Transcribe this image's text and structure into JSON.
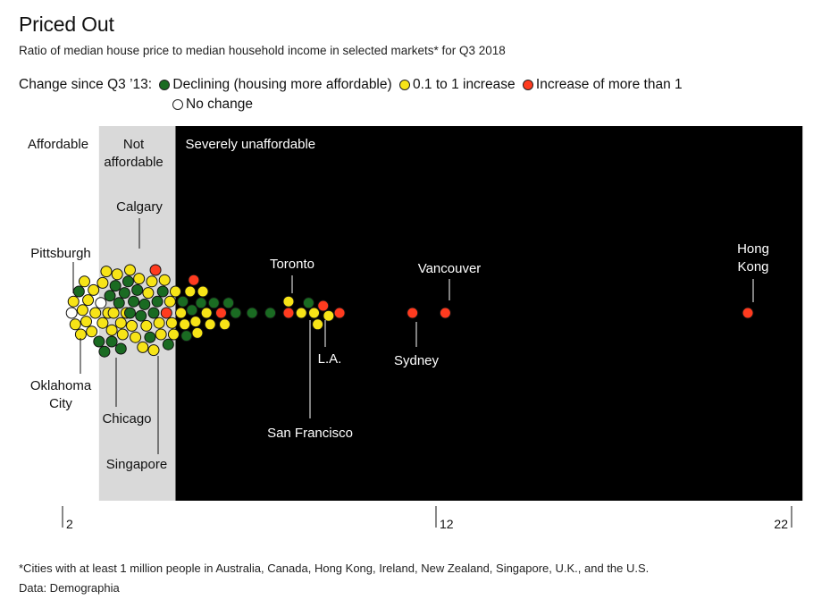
{
  "header": {
    "title": "Priced Out",
    "subtitle": "Ratio of median house price to median household income in selected markets* for Q3 2018"
  },
  "legend": {
    "heading": "Change since Q3 ’13:",
    "items": [
      {
        "label": "Declining (housing more affordable)",
        "color": "#1a6b22"
      },
      {
        "label": "0.1 to 1 increase",
        "color": "#f7e417"
      },
      {
        "label": "Increase of more than 1",
        "color": "#ff3b1f"
      },
      {
        "label": "No change",
        "color": "#ffffff"
      }
    ]
  },
  "footer": {
    "footnote": "*Cities with at least 1 million people in Australia, Canada, Hong Kong, Ireland, New Zealand, Singapore, U.K., and the U.S.",
    "source": "Data: Demographia"
  },
  "chart_data": {
    "type": "scatter",
    "xlim": [
      2,
      22
    ],
    "x_ticks": [
      "2",
      "12",
      "22"
    ],
    "bands": [
      {
        "label": "Affordable",
        "from": 2,
        "to": 3.0,
        "color": "#ffffff"
      },
      {
        "label": "Not\naffordable",
        "from": 3.0,
        "to": 5.1,
        "color": "#d9d9d9"
      },
      {
        "label": "Severely unaffordable",
        "from": 5.1,
        "to": 22.3,
        "color": "#000000"
      }
    ],
    "colors": {
      "declining": "#1a6b22",
      "increase_small": "#f7e417",
      "increase_large": "#ff3b1f",
      "no_change": "#ffffff"
    },
    "cluster": [
      {
        "x": 2.25,
        "c": "no_change"
      },
      {
        "x": 2.45,
        "c": "declining"
      },
      {
        "x": 2.35,
        "c": "increase_small"
      },
      {
        "x": 2.3,
        "c": "increase_small"
      },
      {
        "x": 2.55,
        "c": "increase_small"
      },
      {
        "x": 2.6,
        "c": "increase_small"
      },
      {
        "x": 2.5,
        "c": "increase_small"
      },
      {
        "x": 2.7,
        "c": "increase_small"
      },
      {
        "x": 2.65,
        "c": "increase_small"
      },
      {
        "x": 2.85,
        "c": "increase_small"
      },
      {
        "x": 2.8,
        "c": "increase_small"
      },
      {
        "x": 2.9,
        "c": "increase_small"
      },
      {
        "x": 3.0,
        "c": "declining"
      },
      {
        "x": 3.05,
        "c": "no_change"
      },
      {
        "x": 3.1,
        "c": "increase_small"
      },
      {
        "x": 3.1,
        "c": "increase_small"
      },
      {
        "x": 3.15,
        "c": "declining"
      },
      {
        "x": 3.2,
        "c": "increase_small"
      },
      {
        "x": 3.25,
        "c": "increase_small"
      },
      {
        "x": 3.3,
        "c": "declining"
      },
      {
        "x": 3.35,
        "c": "increase_small"
      },
      {
        "x": 3.35,
        "c": "declining"
      },
      {
        "x": 3.4,
        "c": "increase_small"
      },
      {
        "x": 3.45,
        "c": "declining"
      },
      {
        "x": 3.5,
        "c": "increase_small"
      },
      {
        "x": 3.55,
        "c": "declining"
      },
      {
        "x": 3.6,
        "c": "increase_small"
      },
      {
        "x": 3.6,
        "c": "declining"
      },
      {
        "x": 3.65,
        "c": "increase_small"
      },
      {
        "x": 3.7,
        "c": "declining"
      },
      {
        "x": 3.75,
        "c": "increase_small"
      },
      {
        "x": 3.8,
        "c": "declining"
      },
      {
        "x": 3.85,
        "c": "increase_small"
      },
      {
        "x": 3.85,
        "c": "declining"
      },
      {
        "x": 3.9,
        "c": "increase_small"
      },
      {
        "x": 3.95,
        "c": "declining"
      },
      {
        "x": 4.0,
        "c": "increase_small"
      },
      {
        "x": 4.05,
        "c": "declining"
      },
      {
        "x": 4.1,
        "c": "increase_small"
      },
      {
        "x": 4.15,
        "c": "declining"
      },
      {
        "x": 4.2,
        "c": "increase_small"
      },
      {
        "x": 4.25,
        "c": "declining"
      },
      {
        "x": 4.3,
        "c": "increase_small"
      },
      {
        "x": 4.35,
        "c": "increase_small"
      },
      {
        "x": 4.4,
        "c": "declining"
      },
      {
        "x": 4.45,
        "c": "increase_small"
      },
      {
        "x": 4.5,
        "c": "declining"
      },
      {
        "x": 4.5,
        "c": "increase_small"
      },
      {
        "x": 4.55,
        "c": "increase_large"
      },
      {
        "x": 4.6,
        "c": "declining"
      },
      {
        "x": 4.65,
        "c": "increase_small"
      },
      {
        "x": 4.7,
        "c": "increase_small"
      },
      {
        "x": 4.75,
        "c": "declining"
      },
      {
        "x": 4.8,
        "c": "increase_small"
      },
      {
        "x": 4.85,
        "c": "increase_large"
      },
      {
        "x": 4.9,
        "c": "declining"
      },
      {
        "x": 4.95,
        "c": "increase_small"
      },
      {
        "x": 5.0,
        "c": "increase_small"
      },
      {
        "x": 5.05,
        "c": "increase_small"
      },
      {
        "x": 5.1,
        "c": "increase_small"
      },
      {
        "x": 5.25,
        "c": "increase_small"
      },
      {
        "x": 5.3,
        "c": "declining"
      },
      {
        "x": 5.35,
        "c": "increase_small"
      },
      {
        "x": 5.4,
        "c": "declining"
      },
      {
        "x": 5.5,
        "c": "increase_small"
      },
      {
        "x": 5.55,
        "c": "declining"
      },
      {
        "x": 5.6,
        "c": "increase_large"
      },
      {
        "x": 5.65,
        "c": "increase_small"
      },
      {
        "x": 5.7,
        "c": "increase_small"
      },
      {
        "x": 5.8,
        "c": "declining"
      },
      {
        "x": 5.85,
        "c": "increase_small"
      },
      {
        "x": 5.95,
        "c": "increase_small"
      },
      {
        "x": 6.05,
        "c": "increase_small"
      },
      {
        "x": 6.15,
        "c": "declining"
      },
      {
        "x": 6.35,
        "c": "increase_large"
      },
      {
        "x": 6.45,
        "c": "increase_small"
      },
      {
        "x": 6.55,
        "c": "declining"
      },
      {
        "x": 6.75,
        "c": "declining"
      },
      {
        "x": 7.2,
        "c": "declining"
      },
      {
        "x": 7.7,
        "c": "declining"
      },
      {
        "x": 8.2,
        "c": "increase_large"
      },
      {
        "x": 8.2,
        "c": "increase_small"
      },
      {
        "x": 8.55,
        "c": "increase_small"
      },
      {
        "x": 8.75,
        "c": "declining"
      },
      {
        "x": 8.9,
        "c": "increase_small"
      },
      {
        "x": 9.0,
        "c": "increase_small"
      },
      {
        "x": 9.15,
        "c": "increase_large"
      },
      {
        "x": 9.3,
        "c": "increase_small"
      },
      {
        "x": 9.6,
        "c": "increase_large"
      },
      {
        "x": 11.6,
        "c": "increase_large"
      },
      {
        "x": 12.5,
        "c": "increase_large"
      },
      {
        "x": 20.8,
        "c": "increase_large"
      }
    ],
    "annotations": [
      {
        "label": "Affordable"
      },
      {
        "label": "Calgary"
      },
      {
        "label": "Pittsburgh"
      },
      {
        "label": "Oklahoma\nCity"
      },
      {
        "label": "Chicago"
      },
      {
        "label": "Singapore"
      },
      {
        "label": "Toronto"
      },
      {
        "label": "San Francisco"
      },
      {
        "label": "L.A."
      },
      {
        "label": "Vancouver"
      },
      {
        "label": "Sydney"
      },
      {
        "label": "Hong\nKong"
      }
    ]
  }
}
